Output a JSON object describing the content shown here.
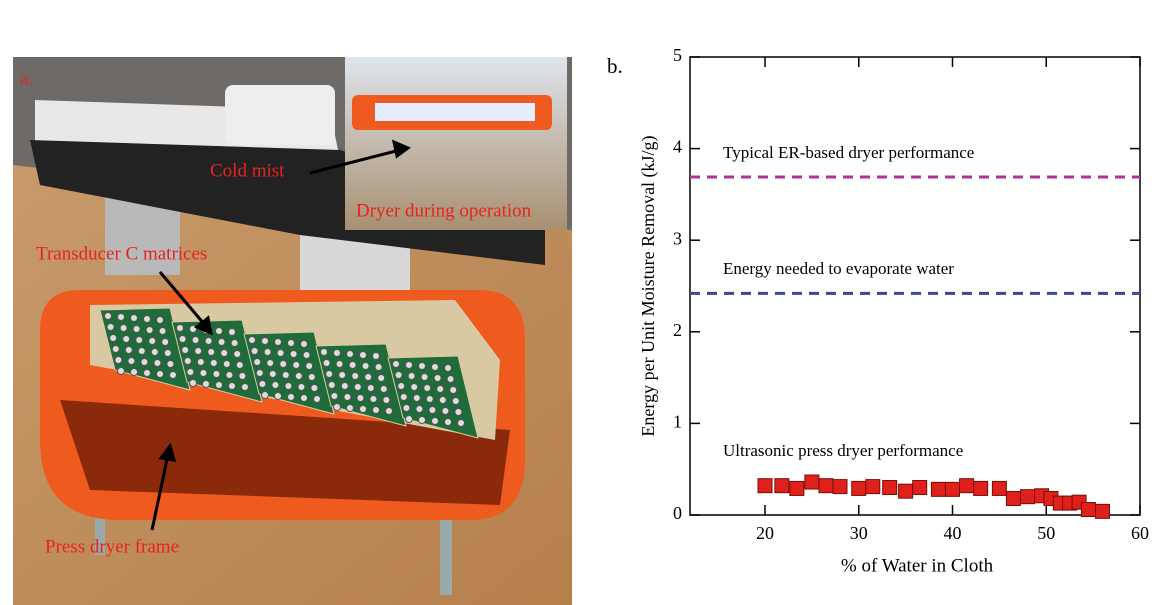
{
  "photo": {
    "label": "a.",
    "annotations": [
      "Cold mist",
      "Dryer during operation",
      "Transducer C matrices",
      "Press dryer frame"
    ]
  },
  "chart_data": {
    "type": "scatter",
    "panel_label": "b.",
    "xlabel": "% of Water in Cloth",
    "ylabel": "Energy per Unit Moisture Removal (kJ/g)",
    "xlim": [
      12,
      60
    ],
    "xticks": [
      20,
      30,
      40,
      50,
      60
    ],
    "ylim": [
      0,
      5
    ],
    "yticks": [
      0,
      1,
      2,
      3,
      4,
      5
    ],
    "reference_lines": [
      {
        "label": "Typical ER-based dryer performance",
        "value": 3.69,
        "color": "#b0309a"
      },
      {
        "label": "Energy needed to evaporate water",
        "value": 2.42,
        "color": "#3a4a9a"
      }
    ],
    "series": [
      {
        "name": "Ultrasonic press dryer performance",
        "color": "#e0201b",
        "x": [
          20,
          21.8,
          23.4,
          25,
          26.5,
          28,
          30,
          31.5,
          33.3,
          35,
          36.5,
          38.5,
          40,
          41.5,
          43,
          45,
          46.5,
          48,
          49.5,
          50.5,
          51.5,
          52.5,
          53.5,
          54.5,
          56
        ],
        "values": [
          0.32,
          0.32,
          0.29,
          0.36,
          0.32,
          0.31,
          0.29,
          0.31,
          0.3,
          0.26,
          0.3,
          0.28,
          0.28,
          0.32,
          0.29,
          0.29,
          0.18,
          0.2,
          0.21,
          0.18,
          0.13,
          0.13,
          0.14,
          0.06,
          0.04
        ]
      }
    ]
  }
}
